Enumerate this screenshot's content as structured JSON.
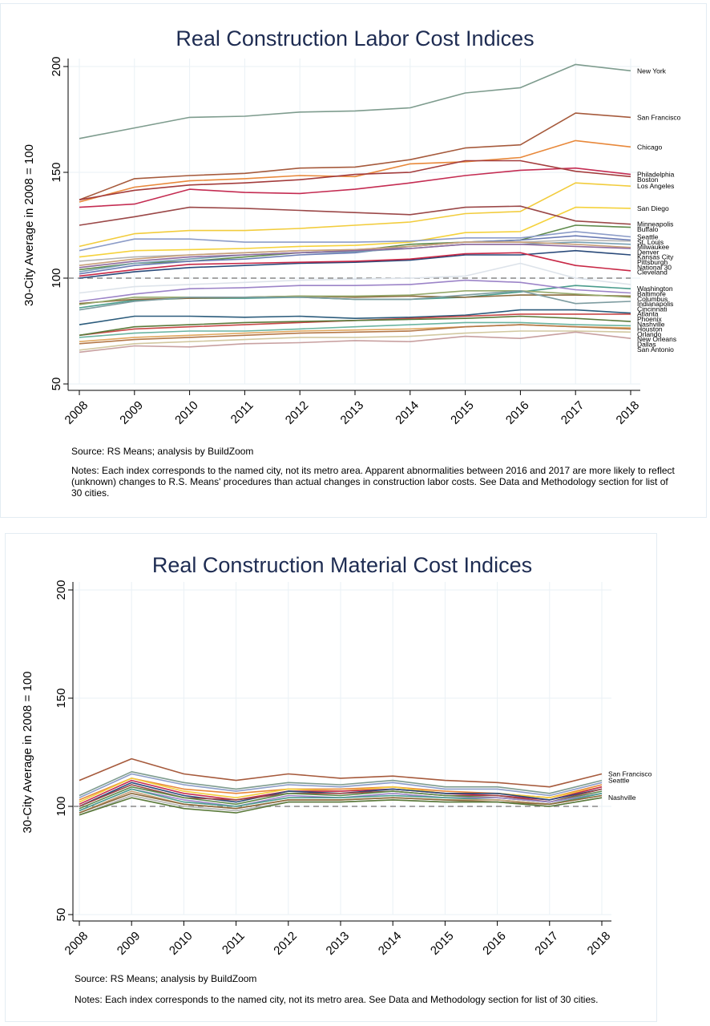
{
  "chart_data": [
    {
      "type": "line",
      "title": "Real Construction Labor Cost Indices",
      "ylabel": "30-City Average in 2008 = 100",
      "xlabel": "",
      "x": [
        "2008",
        "2009",
        "2010",
        "2011",
        "2012",
        "2013",
        "2014",
        "2015",
        "2016",
        "2017",
        "2018"
      ],
      "ylim": [
        50,
        200
      ],
      "yticks": [
        50,
        100,
        150,
        200
      ],
      "reference_line": 100,
      "grid": true,
      "series": [
        {
          "name": "New York",
          "color": "#7e9c8e",
          "values": [
            166,
            171,
            176,
            176.5,
            178.5,
            179,
            180.5,
            187.5,
            190,
            201,
            198
          ]
        },
        {
          "name": "San Francisco",
          "color": "#a65a3c",
          "values": [
            137,
            147,
            148.5,
            149.5,
            152,
            152.5,
            156,
            161.5,
            163,
            178,
            176
          ]
        },
        {
          "name": "Chicago",
          "color": "#e8883a",
          "values": [
            136,
            143,
            146,
            147,
            148.5,
            148,
            154,
            155,
            157,
            165,
            162
          ]
        },
        {
          "name": "Philadelphia",
          "color": "#c42c52",
          "values": [
            133.5,
            135,
            142,
            140.5,
            140,
            142,
            145,
            148.5,
            151,
            152,
            149
          ]
        },
        {
          "name": "Boston",
          "color": "#a33c3c",
          "values": [
            137,
            141.5,
            144,
            145,
            146.5,
            149,
            150,
            155.5,
            155.5,
            150.5,
            148
          ]
        },
        {
          "name": "Los Angeles",
          "color": "#f2cc3c",
          "values": [
            115,
            121,
            122.5,
            122.5,
            123.5,
            125,
            126.5,
            130.5,
            131.5,
            145,
            143.5
          ]
        },
        {
          "name": "San Diego",
          "color": "#f5d23c",
          "values": [
            110,
            113,
            113.5,
            114,
            115,
            115.5,
            117,
            121.5,
            122,
            133.5,
            133
          ]
        },
        {
          "name": "Minneapolis",
          "color": "#9b4848",
          "values": [
            125,
            129,
            133.5,
            133,
            132,
            131,
            130,
            133.5,
            134,
            127,
            125.5
          ]
        },
        {
          "name": "Buffalo",
          "color": "#5e8a4a",
          "values": [
            104,
            107,
            108,
            110,
            112,
            113,
            116,
            117,
            118,
            125,
            124
          ]
        },
        {
          "name": "Seattle",
          "color": "#8c9cc8",
          "values": [
            113,
            118.5,
            118.5,
            117,
            117,
            117,
            117.5,
            119,
            119,
            122,
            119.5
          ]
        },
        {
          "name": "St. Louis",
          "color": "#6a7bb5",
          "values": [
            102,
            106,
            108,
            109,
            111,
            112,
            115,
            117,
            118,
            120,
            118
          ]
        },
        {
          "name": "Milwaukee",
          "color": "#b4b4b4",
          "values": [
            108,
            110,
            111,
            112,
            113,
            113.5,
            115,
            117,
            117,
            118,
            117.5
          ]
        },
        {
          "name": "Denver",
          "color": "#78a0b4",
          "values": [
            103,
            107,
            109,
            111,
            112,
            112.5,
            114,
            116,
            116,
            117,
            116
          ]
        },
        {
          "name": "Kansas City",
          "color": "#c8a078",
          "values": [
            106,
            109,
            111,
            112,
            113,
            113.5,
            115,
            117,
            117,
            116,
            114.5
          ]
        },
        {
          "name": "Pittsburgh",
          "color": "#8e6a9e",
          "values": [
            105,
            108,
            110,
            111,
            112,
            113,
            114,
            116,
            116,
            115,
            114
          ]
        },
        {
          "name": "National 30",
          "color": "#2a4a7a",
          "values": [
            100,
            103,
            105,
            106,
            107,
            107.5,
            108.5,
            111,
            111,
            113,
            111
          ]
        },
        {
          "name": "Cleveland",
          "color": "#c82846",
          "values": [
            101,
            104,
            106.5,
            107,
            107.5,
            108,
            109,
            111.5,
            112,
            106,
            103.5
          ]
        },
        {
          "name": "Washington",
          "color": "#4a9c8c",
          "values": [
            86,
            89.5,
            90.5,
            90.5,
            91,
            90,
            90,
            91,
            93.5,
            96.5,
            95
          ]
        },
        {
          "name": "Baltimore",
          "color": "#9c84c8",
          "values": [
            89,
            92.5,
            95,
            95.5,
            96.5,
            96.5,
            97,
            99,
            98,
            94.5,
            93
          ]
        },
        {
          "name": "Columbus",
          "color": "#8a6a3c",
          "values": [
            88,
            90,
            90.5,
            91,
            91.5,
            91,
            91.5,
            91,
            92,
            92,
            91.5
          ]
        },
        {
          "name": "Indianapolis",
          "color": "#94a86a",
          "values": [
            87.5,
            91,
            91,
            91,
            91.5,
            91.5,
            92,
            94,
            94,
            92.5,
            91
          ]
        },
        {
          "name": "Cincinnati",
          "color": "#7d9ca0",
          "values": [
            85,
            89,
            91,
            91,
            91,
            90,
            90,
            92,
            94,
            88,
            89
          ]
        },
        {
          "name": "Atlanta",
          "color": "#2c5c7c",
          "values": [
            78,
            82,
            82,
            81.5,
            82,
            81,
            81.5,
            82.5,
            85,
            85,
            83.5
          ]
        },
        {
          "name": "Phoenix",
          "color": "#c84848",
          "values": [
            73,
            76,
            77,
            78,
            79,
            80,
            81,
            82,
            83,
            83,
            83
          ]
        },
        {
          "name": "Nashville",
          "color": "#5a7a3a",
          "values": [
            73,
            77,
            78,
            79,
            79.5,
            80,
            80.5,
            81,
            82,
            81,
            79.5
          ]
        },
        {
          "name": "Houston",
          "color": "#6ab4a0",
          "values": [
            72,
            74,
            75,
            75,
            76,
            77,
            78,
            79,
            79,
            78,
            77.5
          ]
        },
        {
          "name": "Orlando",
          "color": "#e0a860",
          "values": [
            70,
            72,
            73,
            74,
            75,
            75.5,
            76,
            77,
            78,
            77,
            76.5
          ]
        },
        {
          "name": "New Orleans",
          "color": "#b47848",
          "values": [
            69,
            71,
            72,
            73,
            74,
            74.5,
            75,
            77,
            78,
            77,
            76
          ]
        },
        {
          "name": "Dallas",
          "color": "#d2c8a0",
          "values": [
            66,
            69,
            70,
            71,
            72,
            72,
            72.5,
            74,
            75,
            75,
            74.5
          ]
        },
        {
          "name": "San Antonio",
          "color": "#c8a0a0",
          "values": [
            65,
            68,
            67.5,
            69,
            69.5,
            70.5,
            70,
            72.5,
            71.5,
            74.5,
            71.5
          ]
        },
        {
          "name": "",
          "color": "#dde3ea",
          "values": [
            93,
            96,
            97,
            98,
            99,
            99.5,
            100,
            101,
            107,
            100,
            97
          ]
        }
      ],
      "end_labels": [
        "New York",
        "San Francisco",
        "Chicago",
        "Philadelphia",
        "Boston",
        "Los Angeles",
        "San Diego",
        "Minneapolis",
        "Buffalo",
        "Seattle",
        "St. Louis",
        "Milwaukee",
        "Denver",
        "Kansas City",
        "Pittsburgh",
        "National 30",
        "Cleveland",
        "Washington",
        "Baltimore",
        "Columbus",
        "Indianapolis",
        "Cincinnati",
        "Atlanta",
        "Phoenix",
        "Nashville",
        "Houston",
        "Orlando",
        "New Orleans",
        "Dallas",
        "San Antonio"
      ]
    },
    {
      "type": "line",
      "title": "Real Construction Material Cost Indices",
      "ylabel": "30-City Average in 2008 = 100",
      "xlabel": "",
      "x": [
        "2008",
        "2009",
        "2010",
        "2011",
        "2012",
        "2013",
        "2014",
        "2015",
        "2016",
        "2017",
        "2018"
      ],
      "ylim": [
        50,
        200
      ],
      "yticks": [
        50,
        100,
        150,
        200
      ],
      "reference_line": 100,
      "grid": true,
      "series": [
        {
          "name": "San Francisco",
          "color": "#a65a3c",
          "values": [
            112,
            122,
            115,
            112,
            115,
            113,
            114,
            112,
            111,
            109,
            115
          ]
        },
        {
          "name": "Seattle",
          "color": "#7e9c8e",
          "values": [
            105,
            116,
            111,
            108,
            111,
            110,
            112,
            109,
            109,
            106,
            112
          ]
        },
        {
          "name": "",
          "color": "#8c9cc8",
          "values": [
            104,
            115,
            110,
            107,
            110,
            109,
            111,
            108,
            108,
            105,
            111
          ]
        },
        {
          "name": "",
          "color": "#e8883a",
          "values": [
            103,
            113,
            108,
            106,
            108,
            108,
            109,
            107,
            106,
            104,
            110
          ]
        },
        {
          "name": "",
          "color": "#f2cc3c",
          "values": [
            102,
            113,
            107,
            104,
            108,
            107,
            109,
            106,
            106,
            104,
            109
          ]
        },
        {
          "name": "",
          "color": "#c42c52",
          "values": [
            101,
            112,
            106,
            103,
            107,
            107,
            108,
            106,
            105,
            103,
            109
          ]
        },
        {
          "name": "",
          "color": "#2a4a7a",
          "values": [
            100,
            111,
            105,
            102,
            107,
            106,
            108,
            106,
            106,
            103,
            108
          ]
        },
        {
          "name": "",
          "color": "#9b4848",
          "values": [
            100,
            110,
            104,
            103,
            106,
            106,
            107,
            105,
            105,
            102,
            108
          ]
        },
        {
          "name": "",
          "color": "#5e8a4a",
          "values": [
            99,
            109,
            104,
            101,
            106,
            105,
            107,
            105,
            104,
            102,
            107
          ]
        },
        {
          "name": "",
          "color": "#9c84c8",
          "values": [
            98,
            108,
            103,
            100,
            105,
            104,
            106,
            104,
            104,
            102,
            106
          ]
        },
        {
          "name": "",
          "color": "#4a9c8c",
          "values": [
            98,
            108,
            102,
            100,
            104,
            104,
            105,
            104,
            103,
            101,
            106
          ]
        },
        {
          "name": "",
          "color": "#c8a078",
          "values": [
            97,
            107,
            101,
            99,
            103,
            103,
            104,
            103,
            103,
            101,
            105
          ]
        },
        {
          "name": "",
          "color": "#8a6a3c",
          "values": [
            97,
            106,
            101,
            99,
            103,
            103,
            104,
            103,
            102,
            101,
            105
          ]
        },
        {
          "name": "",
          "color": "#b4b4b4",
          "values": [
            96,
            105,
            100,
            98,
            102,
            102,
            103,
            102,
            102,
            100,
            104
          ]
        },
        {
          "name": "Nashville",
          "color": "#5a7a3a",
          "values": [
            96,
            104,
            99,
            97,
            102,
            102,
            103,
            102,
            102,
            100,
            104
          ]
        }
      ],
      "end_labels": [
        "San Francisco",
        "Seattle",
        "Nashville"
      ]
    }
  ],
  "notes": {
    "top_source": "Source: RS Means; analysis by BuildZoom",
    "top_notes": "Notes: Each index corresponds to the named city, not its metro area. Apparent abnormalities between 2016 and 2017 are more likely to reflect (unknown) changes to R.S. Means' procedures than actual changes in construction labor costs. See Data and Methodology section for list of 30 cities.",
    "bottom_source": "Source: RS Means; analysis by BuildZoom",
    "bottom_notes": "Notes: Each index corresponds to the named city, not its metro area. See Data and Methodology section for list of 30 cities."
  }
}
